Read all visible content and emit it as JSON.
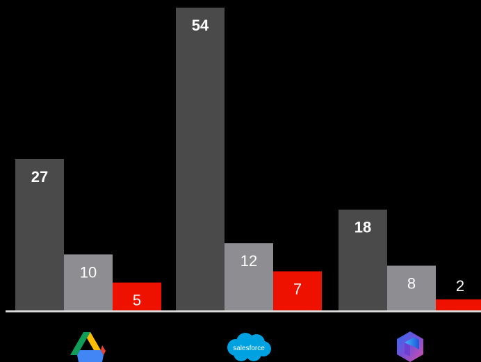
{
  "chart_data": {
    "type": "bar",
    "title": "",
    "xlabel": "",
    "ylabel": "",
    "ylim": [
      0,
      56
    ],
    "grid": false,
    "categories": [
      {
        "name": "",
        "icon": "google-drive-logo-icon"
      },
      {
        "name": "salesforce",
        "icon": "salesforce-logo-icon"
      },
      {
        "name": "",
        "icon": "microsoft-365-logo-icon"
      }
    ],
    "series": [
      {
        "values": [
          27,
          54,
          18
        ],
        "color": "#4a4a4a",
        "label_color": "#ffffff",
        "label_weight": "bold"
      },
      {
        "values": [
          10,
          12,
          8
        ],
        "color": "#8e8e92",
        "label_color": "#ffffff",
        "label_weight": "normal"
      },
      {
        "values": [
          5,
          7,
          2
        ],
        "color": "#ee1100",
        "label_color": "#ffffff",
        "label_weight": "normal"
      }
    ],
    "axis_color": "#d9d9d9"
  }
}
